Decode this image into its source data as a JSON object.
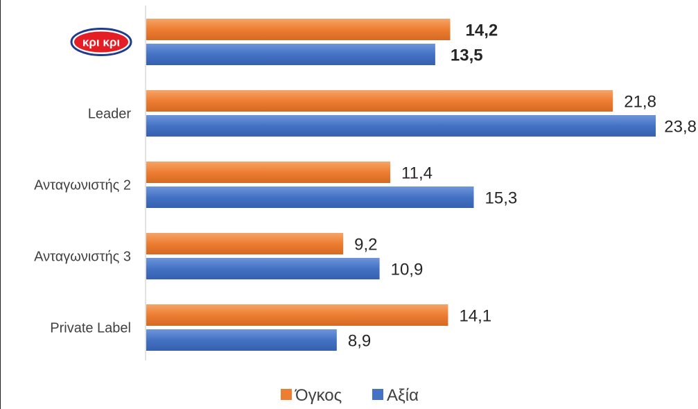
{
  "chart_data": {
    "type": "bar",
    "orientation": "horizontal",
    "categories": [
      "",
      "Leader",
      "Ανταγωνιστής 2",
      "Ανταγωνιστής 3",
      "Private Label"
    ],
    "category_logos": [
      {
        "text": "κρι κρι",
        "shape": "red-oval-logo"
      },
      null,
      null,
      null,
      null
    ],
    "series": [
      {
        "name": "Όγκος",
        "values": [
          14.2,
          21.8,
          11.4,
          9.2,
          14.1
        ],
        "color": "#ED7D31"
      },
      {
        "name": "Αξία",
        "values": [
          13.5,
          23.8,
          15.3,
          10.9,
          8.9
        ],
        "color": "#4472C4"
      }
    ],
    "value_labels": {
      "Όγκος": [
        "14,2",
        "21,8",
        "11,4",
        "9,2",
        "14,1"
      ],
      "Αξία": [
        "13,5",
        "23,8",
        "15,3",
        "10,9",
        "8,9"
      ]
    },
    "bold_category_index": 0,
    "xlim": [
      0,
      23.8
    ],
    "grid": false,
    "legend": "bottom"
  }
}
